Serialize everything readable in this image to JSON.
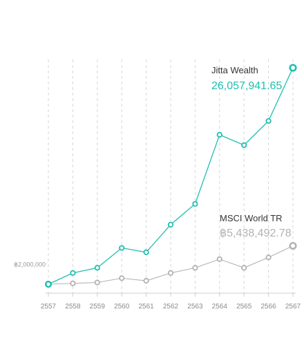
{
  "chart_data": {
    "type": "line",
    "x": [
      "2557",
      "2558",
      "2559",
      "2560",
      "2561",
      "2562",
      "2563",
      "2564",
      "2565",
      "2566",
      "2567"
    ],
    "series": [
      {
        "name": "Jitta Wealth",
        "final_label": "26,057,941.65",
        "color": "#1fbfaf",
        "values": [
          1000000,
          2300000,
          2900000,
          5200000,
          4700000,
          7900000,
          10300000,
          18300000,
          17100000,
          19900000,
          26057941.65
        ]
      },
      {
        "name": "MSCI World TR",
        "final_label": "฿5,438,492.78",
        "color": "#b2b2b2",
        "values": [
          1000000,
          1100000,
          1200000,
          1700000,
          1400000,
          2300000,
          2900000,
          3900000,
          2900000,
          4100000,
          5438492.78
        ]
      }
    ],
    "y_tick_label": "฿2,000,000",
    "y_tick_value": 2000000,
    "grid": "vertical-dashed",
    "legend": "inline-right"
  }
}
